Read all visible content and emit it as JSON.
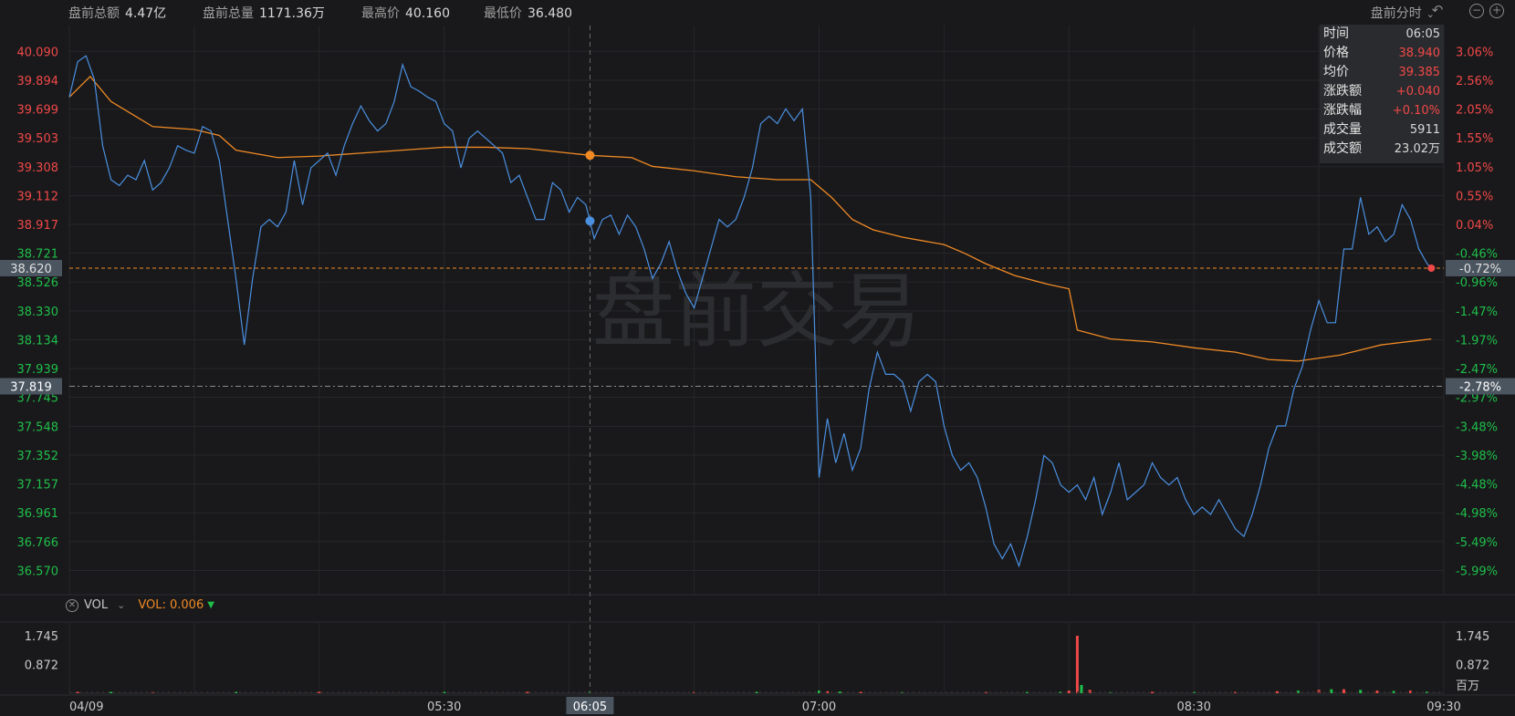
{
  "stats": [
    {
      "label": "盘前总额",
      "value": "4.47亿"
    },
    {
      "label": "盘前总量",
      "value": "1171.36万"
    },
    {
      "label": "最高价",
      "value": "40.160"
    },
    {
      "label": "最低价",
      "value": "36.480"
    }
  ],
  "mode_label": "盘前分时",
  "watermark": "盘前交易",
  "tooltip": {
    "rows": [
      {
        "label": "时间",
        "value": "06:05",
        "color": "#d8d8d8"
      },
      {
        "label": "价格",
        "value": "38.940",
        "color": "#f04848"
      },
      {
        "label": "均价",
        "value": "39.385",
        "color": "#f04848"
      },
      {
        "label": "涨跌额",
        "value": "+0.040",
        "color": "#f04848"
      },
      {
        "label": "涨跌幅",
        "value": "+0.10%",
        "color": "#f04848"
      },
      {
        "label": "成交量",
        "value": "5911",
        "color": "#d8d8d8"
      },
      {
        "label": "成交额",
        "value": "23.02万",
        "color": "#d8d8d8"
      }
    ]
  },
  "volume_bar": {
    "name": "VOL",
    "value_label": "VOL: 0.006"
  },
  "colors": {
    "up": "#f04848",
    "down": "#1fbf4a",
    "price_line": "#4a8fe0",
    "avg_line": "#f08a24",
    "bg": "#19191b"
  },
  "chart_data": {
    "type": "line",
    "x_ticks": [
      "04/09",
      "05:30",
      "06:05",
      "07:00",
      "08:30",
      "09:30"
    ],
    "price_ticks_up": [
      "40.090",
      "39.894",
      "39.699",
      "39.503",
      "39.308",
      "39.112",
      "38.917"
    ],
    "price_ticks_down": [
      "38.721",
      "38.526",
      "38.330",
      "38.134",
      "37.939",
      "37.745",
      "37.548",
      "37.352",
      "37.157",
      "36.961",
      "36.766",
      "36.570"
    ],
    "pct_ticks_up": [
      "3.06%",
      "2.56%",
      "2.05%",
      "1.55%",
      "1.05%",
      "0.55%",
      "0.04%"
    ],
    "pct_ticks_down": [
      "-0.46%",
      "-0.96%",
      "-1.47%",
      "-1.97%",
      "-2.47%",
      "-2.97%",
      "-3.48%",
      "-3.98%",
      "-4.48%",
      "-4.98%",
      "-5.49%",
      "-5.99%"
    ],
    "ylim": [
      36.48,
      40.16
    ],
    "prev_close_label": "38.620",
    "prev_close_pct": "-0.72%",
    "crosshair_price": "37.819",
    "crosshair_pct": "-2.78%",
    "crosshair_time": "06:05",
    "time_range": [
      "04:00",
      "09:30"
    ],
    "price_series": {
      "name": "价格",
      "points": [
        [
          "04:00",
          39.78
        ],
        [
          "04:02",
          40.02
        ],
        [
          "04:04",
          40.06
        ],
        [
          "04:06",
          39.9
        ],
        [
          "04:08",
          39.45
        ],
        [
          "04:10",
          39.22
        ],
        [
          "04:12",
          39.18
        ],
        [
          "04:14",
          39.25
        ],
        [
          "04:16",
          39.22
        ],
        [
          "04:18",
          39.35
        ],
        [
          "04:20",
          39.15
        ],
        [
          "04:22",
          39.2
        ],
        [
          "04:24",
          39.3
        ],
        [
          "04:26",
          39.45
        ],
        [
          "04:28",
          39.42
        ],
        [
          "04:30",
          39.4
        ],
        [
          "04:32",
          39.58
        ],
        [
          "04:34",
          39.55
        ],
        [
          "04:36",
          39.35
        ],
        [
          "04:38",
          38.95
        ],
        [
          "04:40",
          38.55
        ],
        [
          "04:42",
          38.1
        ],
        [
          "04:44",
          38.55
        ],
        [
          "04:46",
          38.9
        ],
        [
          "04:48",
          38.95
        ],
        [
          "04:50",
          38.9
        ],
        [
          "04:52",
          39.0
        ],
        [
          "04:54",
          39.35
        ],
        [
          "04:56",
          39.05
        ],
        [
          "04:58",
          39.3
        ],
        [
          "05:00",
          39.35
        ],
        [
          "05:02",
          39.4
        ],
        [
          "05:04",
          39.25
        ],
        [
          "05:06",
          39.45
        ],
        [
          "05:08",
          39.6
        ],
        [
          "05:10",
          39.72
        ],
        [
          "05:12",
          39.62
        ],
        [
          "05:14",
          39.55
        ],
        [
          "05:16",
          39.6
        ],
        [
          "05:18",
          39.75
        ],
        [
          "05:20",
          40.0
        ],
        [
          "05:22",
          39.85
        ],
        [
          "05:24",
          39.82
        ],
        [
          "05:26",
          39.78
        ],
        [
          "05:28",
          39.75
        ],
        [
          "05:30",
          39.6
        ],
        [
          "05:32",
          39.55
        ],
        [
          "05:34",
          39.3
        ],
        [
          "05:36",
          39.5
        ],
        [
          "05:38",
          39.55
        ],
        [
          "05:40",
          39.5
        ],
        [
          "05:42",
          39.45
        ],
        [
          "05:44",
          39.4
        ],
        [
          "05:46",
          39.2
        ],
        [
          "05:48",
          39.25
        ],
        [
          "05:50",
          39.1
        ],
        [
          "05:52",
          38.95
        ],
        [
          "05:54",
          38.95
        ],
        [
          "05:56",
          39.2
        ],
        [
          "05:58",
          39.15
        ],
        [
          "06:00",
          39.0
        ],
        [
          "06:02",
          39.1
        ],
        [
          "06:04",
          39.05
        ],
        [
          "06:05",
          38.94
        ],
        [
          "06:06",
          38.82
        ],
        [
          "06:08",
          38.95
        ],
        [
          "06:10",
          38.98
        ],
        [
          "06:12",
          38.85
        ],
        [
          "06:14",
          38.98
        ],
        [
          "06:16",
          38.9
        ],
        [
          "06:18",
          38.75
        ],
        [
          "06:20",
          38.55
        ],
        [
          "06:22",
          38.65
        ],
        [
          "06:24",
          38.8
        ],
        [
          "06:26",
          38.6
        ],
        [
          "06:28",
          38.45
        ],
        [
          "06:30",
          38.35
        ],
        [
          "06:32",
          38.55
        ],
        [
          "06:34",
          38.75
        ],
        [
          "06:36",
          38.95
        ],
        [
          "06:38",
          38.9
        ],
        [
          "06:40",
          38.95
        ],
        [
          "06:42",
          39.1
        ],
        [
          "06:44",
          39.3
        ],
        [
          "06:46",
          39.6
        ],
        [
          "06:48",
          39.65
        ],
        [
          "06:50",
          39.6
        ],
        [
          "06:52",
          39.7
        ],
        [
          "06:54",
          39.62
        ],
        [
          "06:56",
          39.7
        ],
        [
          "06:58",
          39.1
        ],
        [
          "07:00",
          37.2
        ],
        [
          "07:02",
          37.6
        ],
        [
          "07:04",
          37.3
        ],
        [
          "07:06",
          37.5
        ],
        [
          "07:08",
          37.25
        ],
        [
          "07:10",
          37.4
        ],
        [
          "07:12",
          37.8
        ],
        [
          "07:14",
          38.05
        ],
        [
          "07:16",
          37.9
        ],
        [
          "07:18",
          37.9
        ],
        [
          "07:20",
          37.85
        ],
        [
          "07:22",
          37.65
        ],
        [
          "07:24",
          37.85
        ],
        [
          "07:26",
          37.9
        ],
        [
          "07:28",
          37.85
        ],
        [
          "07:30",
          37.55
        ],
        [
          "07:32",
          37.35
        ],
        [
          "07:34",
          37.25
        ],
        [
          "07:36",
          37.3
        ],
        [
          "07:38",
          37.2
        ],
        [
          "07:40",
          37.0
        ],
        [
          "07:42",
          36.75
        ],
        [
          "07:44",
          36.65
        ],
        [
          "07:46",
          36.75
        ],
        [
          "07:48",
          36.6
        ],
        [
          "07:50",
          36.8
        ],
        [
          "07:52",
          37.05
        ],
        [
          "07:54",
          37.35
        ],
        [
          "07:56",
          37.3
        ],
        [
          "07:58",
          37.15
        ],
        [
          "08:00",
          37.1
        ],
        [
          "08:02",
          37.15
        ],
        [
          "08:04",
          37.05
        ],
        [
          "08:06",
          37.2
        ],
        [
          "08:08",
          36.95
        ],
        [
          "08:10",
          37.1
        ],
        [
          "08:12",
          37.3
        ],
        [
          "08:14",
          37.05
        ],
        [
          "08:16",
          37.1
        ],
        [
          "08:18",
          37.15
        ],
        [
          "08:20",
          37.3
        ],
        [
          "08:22",
          37.2
        ],
        [
          "08:24",
          37.15
        ],
        [
          "08:26",
          37.2
        ],
        [
          "08:28",
          37.05
        ],
        [
          "08:30",
          36.95
        ],
        [
          "08:32",
          37.0
        ],
        [
          "08:34",
          36.95
        ],
        [
          "08:36",
          37.05
        ],
        [
          "08:38",
          36.95
        ],
        [
          "08:40",
          36.85
        ],
        [
          "08:42",
          36.8
        ],
        [
          "08:44",
          36.95
        ],
        [
          "08:46",
          37.15
        ],
        [
          "08:48",
          37.4
        ],
        [
          "08:50",
          37.55
        ],
        [
          "08:52",
          37.55
        ],
        [
          "08:54",
          37.8
        ],
        [
          "08:56",
          37.95
        ],
        [
          "08:58",
          38.2
        ],
        [
          "09:00",
          38.4
        ],
        [
          "09:02",
          38.25
        ],
        [
          "09:04",
          38.25
        ],
        [
          "09:06",
          38.75
        ],
        [
          "09:08",
          38.75
        ],
        [
          "09:10",
          39.1
        ],
        [
          "09:12",
          38.85
        ],
        [
          "09:14",
          38.9
        ],
        [
          "09:16",
          38.8
        ],
        [
          "09:18",
          38.85
        ],
        [
          "09:20",
          39.05
        ],
        [
          "09:22",
          38.95
        ],
        [
          "09:24",
          38.75
        ],
        [
          "09:26",
          38.65
        ],
        [
          "09:27",
          38.62
        ]
      ]
    },
    "avg_series": {
      "name": "均价",
      "points": [
        [
          "04:00",
          39.78
        ],
        [
          "04:05",
          39.92
        ],
        [
          "04:10",
          39.75
        ],
        [
          "04:20",
          39.58
        ],
        [
          "04:30",
          39.56
        ],
        [
          "04:36",
          39.52
        ],
        [
          "04:40",
          39.42
        ],
        [
          "04:50",
          39.37
        ],
        [
          "05:00",
          39.38
        ],
        [
          "05:10",
          39.4
        ],
        [
          "05:20",
          39.42
        ],
        [
          "05:30",
          39.44
        ],
        [
          "05:40",
          39.44
        ],
        [
          "05:50",
          39.43
        ],
        [
          "06:00",
          39.4
        ],
        [
          "06:05",
          39.385
        ],
        [
          "06:15",
          39.37
        ],
        [
          "06:20",
          39.31
        ],
        [
          "06:30",
          39.28
        ],
        [
          "06:40",
          39.24
        ],
        [
          "06:50",
          39.22
        ],
        [
          "06:58",
          39.22
        ],
        [
          "07:03",
          39.1
        ],
        [
          "07:08",
          38.95
        ],
        [
          "07:13",
          38.88
        ],
        [
          "07:20",
          38.83
        ],
        [
          "07:30",
          38.78
        ],
        [
          "07:35",
          38.72
        ],
        [
          "07:40",
          38.65
        ],
        [
          "07:47",
          38.57
        ],
        [
          "07:55",
          38.51
        ],
        [
          "08:00",
          38.48
        ],
        [
          "08:02",
          38.2
        ],
        [
          "08:10",
          38.14
        ],
        [
          "08:20",
          38.12
        ],
        [
          "08:30",
          38.08
        ],
        [
          "08:40",
          38.05
        ],
        [
          "08:48",
          38.0
        ],
        [
          "08:55",
          37.99
        ],
        [
          "09:05",
          38.03
        ],
        [
          "09:15",
          38.1
        ],
        [
          "09:27",
          38.14
        ]
      ]
    },
    "volume": {
      "ylim": [
        0,
        1.745
      ],
      "ticks": [
        "1.745",
        "0.872"
      ],
      "unit": "百万",
      "bars": [
        [
          "04:02",
          0.03,
          "up"
        ],
        [
          "04:10",
          0.02,
          "down"
        ],
        [
          "04:20",
          0.01,
          "up"
        ],
        [
          "04:40",
          0.02,
          "down"
        ],
        [
          "05:00",
          0.01,
          "up"
        ],
        [
          "05:30",
          0.02,
          "down"
        ],
        [
          "05:50",
          0.01,
          "up"
        ],
        [
          "06:05",
          0.006,
          "down"
        ],
        [
          "06:30",
          0.02,
          "up"
        ],
        [
          "06:45",
          0.01,
          "down"
        ],
        [
          "07:00",
          0.08,
          "down"
        ],
        [
          "07:02",
          0.06,
          "up"
        ],
        [
          "07:05",
          0.05,
          "down"
        ],
        [
          "07:10",
          0.04,
          "up"
        ],
        [
          "07:20",
          0.03,
          "down"
        ],
        [
          "07:40",
          0.03,
          "up"
        ],
        [
          "07:50",
          0.04,
          "down"
        ],
        [
          "07:58",
          0.05,
          "down"
        ],
        [
          "08:00",
          0.08,
          "up"
        ],
        [
          "08:02",
          1.745,
          "up"
        ],
        [
          "08:03",
          0.25,
          "down"
        ],
        [
          "08:05",
          0.1,
          "up"
        ],
        [
          "08:10",
          0.04,
          "down"
        ],
        [
          "08:20",
          0.03,
          "up"
        ],
        [
          "08:30",
          0.03,
          "down"
        ],
        [
          "08:40",
          0.03,
          "up"
        ],
        [
          "08:50",
          0.06,
          "up"
        ],
        [
          "08:55",
          0.08,
          "down"
        ],
        [
          "09:00",
          0.1,
          "up"
        ],
        [
          "09:03",
          0.12,
          "down"
        ],
        [
          "09:06",
          0.12,
          "up"
        ],
        [
          "09:10",
          0.1,
          "down"
        ],
        [
          "09:14",
          0.08,
          "up"
        ],
        [
          "09:18",
          0.07,
          "down"
        ],
        [
          "09:22",
          0.08,
          "up"
        ],
        [
          "09:26",
          0.05,
          "down"
        ]
      ]
    }
  }
}
